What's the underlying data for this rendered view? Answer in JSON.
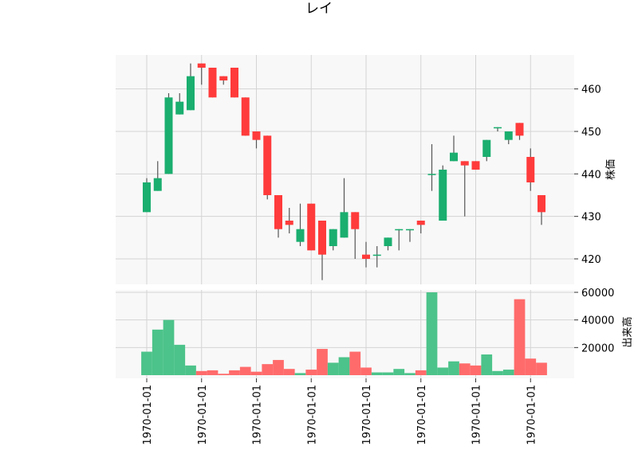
{
  "chart_data": {
    "type": "candlestick",
    "title": "レイ",
    "grid": true,
    "price_axis": {
      "label": "株価",
      "side": "right",
      "ylim": [
        414,
        468
      ],
      "ticks": [
        420,
        430,
        440,
        450,
        460
      ]
    },
    "volume_axis": {
      "label": "出来高",
      "side": "right",
      "ylim": [
        0,
        60000
      ],
      "ticks": [
        20000,
        40000,
        60000
      ],
      "tick_labels": [
        "20000",
        "40000",
        "60000"
      ]
    },
    "x_tick_labels": [
      "1970-01-01",
      "1970-01-01",
      "1970-01-01",
      "1970-01-01",
      "1970-01-01",
      "1970-01-01",
      "1970-01-01",
      "1970-01-01"
    ],
    "x_tick_indices": [
      0,
      5,
      10,
      15,
      20,
      25,
      30,
      35
    ],
    "colors": {
      "up": "#1aae6f",
      "down": "#ff3b3b",
      "volume_up": "#4cc38a",
      "volume_down": "#ff6b6b",
      "wick": "#555555"
    },
    "candles": [
      {
        "o": 431,
        "h": 439,
        "l": 431,
        "c": 438,
        "v": 17000
      },
      {
        "o": 436,
        "h": 443,
        "l": 436,
        "c": 439,
        "v": 33000
      },
      {
        "o": 440,
        "h": 459,
        "l": 440,
        "c": 458,
        "v": 40000
      },
      {
        "o": 454,
        "h": 459,
        "l": 454,
        "c": 457,
        "v": 22000
      },
      {
        "o": 455,
        "h": 466,
        "l": 455,
        "c": 463,
        "v": 7000
      },
      {
        "o": 466,
        "h": 466,
        "l": 461,
        "c": 465,
        "v": 3000
      },
      {
        "o": 465,
        "h": 465,
        "l": 458,
        "c": 458,
        "v": 3500
      },
      {
        "o": 463,
        "h": 463,
        "l": 461,
        "c": 462,
        "v": 1000
      },
      {
        "o": 465,
        "h": 465,
        "l": 458,
        "c": 458,
        "v": 3500
      },
      {
        "o": 458,
        "h": 458,
        "l": 449,
        "c": 449,
        "v": 6000
      },
      {
        "o": 450,
        "h": 450,
        "l": 446,
        "c": 448,
        "v": 2500
      },
      {
        "o": 449,
        "h": 449,
        "l": 434,
        "c": 435,
        "v": 8000
      },
      {
        "o": 435,
        "h": 435,
        "l": 425,
        "c": 427,
        "v": 11000
      },
      {
        "o": 429,
        "h": 432,
        "l": 426,
        "c": 428,
        "v": 4500
      },
      {
        "o": 424,
        "h": 433,
        "l": 423,
        "c": 427,
        "v": 1500
      },
      {
        "o": 433,
        "h": 433,
        "l": 422,
        "c": 422,
        "v": 4000
      },
      {
        "o": 429,
        "h": 429,
        "l": 415,
        "c": 421,
        "v": 19000
      },
      {
        "o": 423,
        "h": 427,
        "l": 422,
        "c": 427,
        "v": 9000
      },
      {
        "o": 425,
        "h": 439,
        "l": 425,
        "c": 431,
        "v": 13000
      },
      {
        "o": 431,
        "h": 431,
        "l": 420,
        "c": 427,
        "v": 17000
      },
      {
        "o": 421,
        "h": 424,
        "l": 418,
        "c": 420,
        "v": 5500
      },
      {
        "o": 421,
        "h": 423,
        "l": 418,
        "c": 421,
        "v": 2000
      },
      {
        "o": 423,
        "h": 425,
        "l": 422,
        "c": 425,
        "v": 2000
      },
      {
        "o": 427,
        "h": 427,
        "l": 422,
        "c": 427,
        "v": 4500
      },
      {
        "o": 427,
        "h": 427,
        "l": 424,
        "c": 427,
        "v": 1500
      },
      {
        "o": 429,
        "h": 429,
        "l": 426,
        "c": 428,
        "v": 3500
      },
      {
        "o": 440,
        "h": 447,
        "l": 436,
        "c": 440,
        "v": 60000
      },
      {
        "o": 429,
        "h": 442,
        "l": 429,
        "c": 441,
        "v": 5500
      },
      {
        "o": 443,
        "h": 449,
        "l": 443,
        "c": 445,
        "v": 10000
      },
      {
        "o": 443,
        "h": 443,
        "l": 430,
        "c": 442,
        "v": 8500
      },
      {
        "o": 443,
        "h": 443,
        "l": 441,
        "c": 441,
        "v": 7000
      },
      {
        "o": 444,
        "h": 448,
        "l": 443,
        "c": 448,
        "v": 15000
      },
      {
        "o": 451,
        "h": 451,
        "l": 450,
        "c": 451,
        "v": 3000
      },
      {
        "o": 448,
        "h": 450,
        "l": 447,
        "c": 450,
        "v": 4000
      },
      {
        "o": 452,
        "h": 452,
        "l": 448,
        "c": 449,
        "v": 55000
      },
      {
        "o": 444,
        "h": 446,
        "l": 436,
        "c": 438,
        "v": 12000
      },
      {
        "o": 435,
        "h": 435,
        "l": 428,
        "c": 431,
        "v": 9000
      }
    ]
  }
}
